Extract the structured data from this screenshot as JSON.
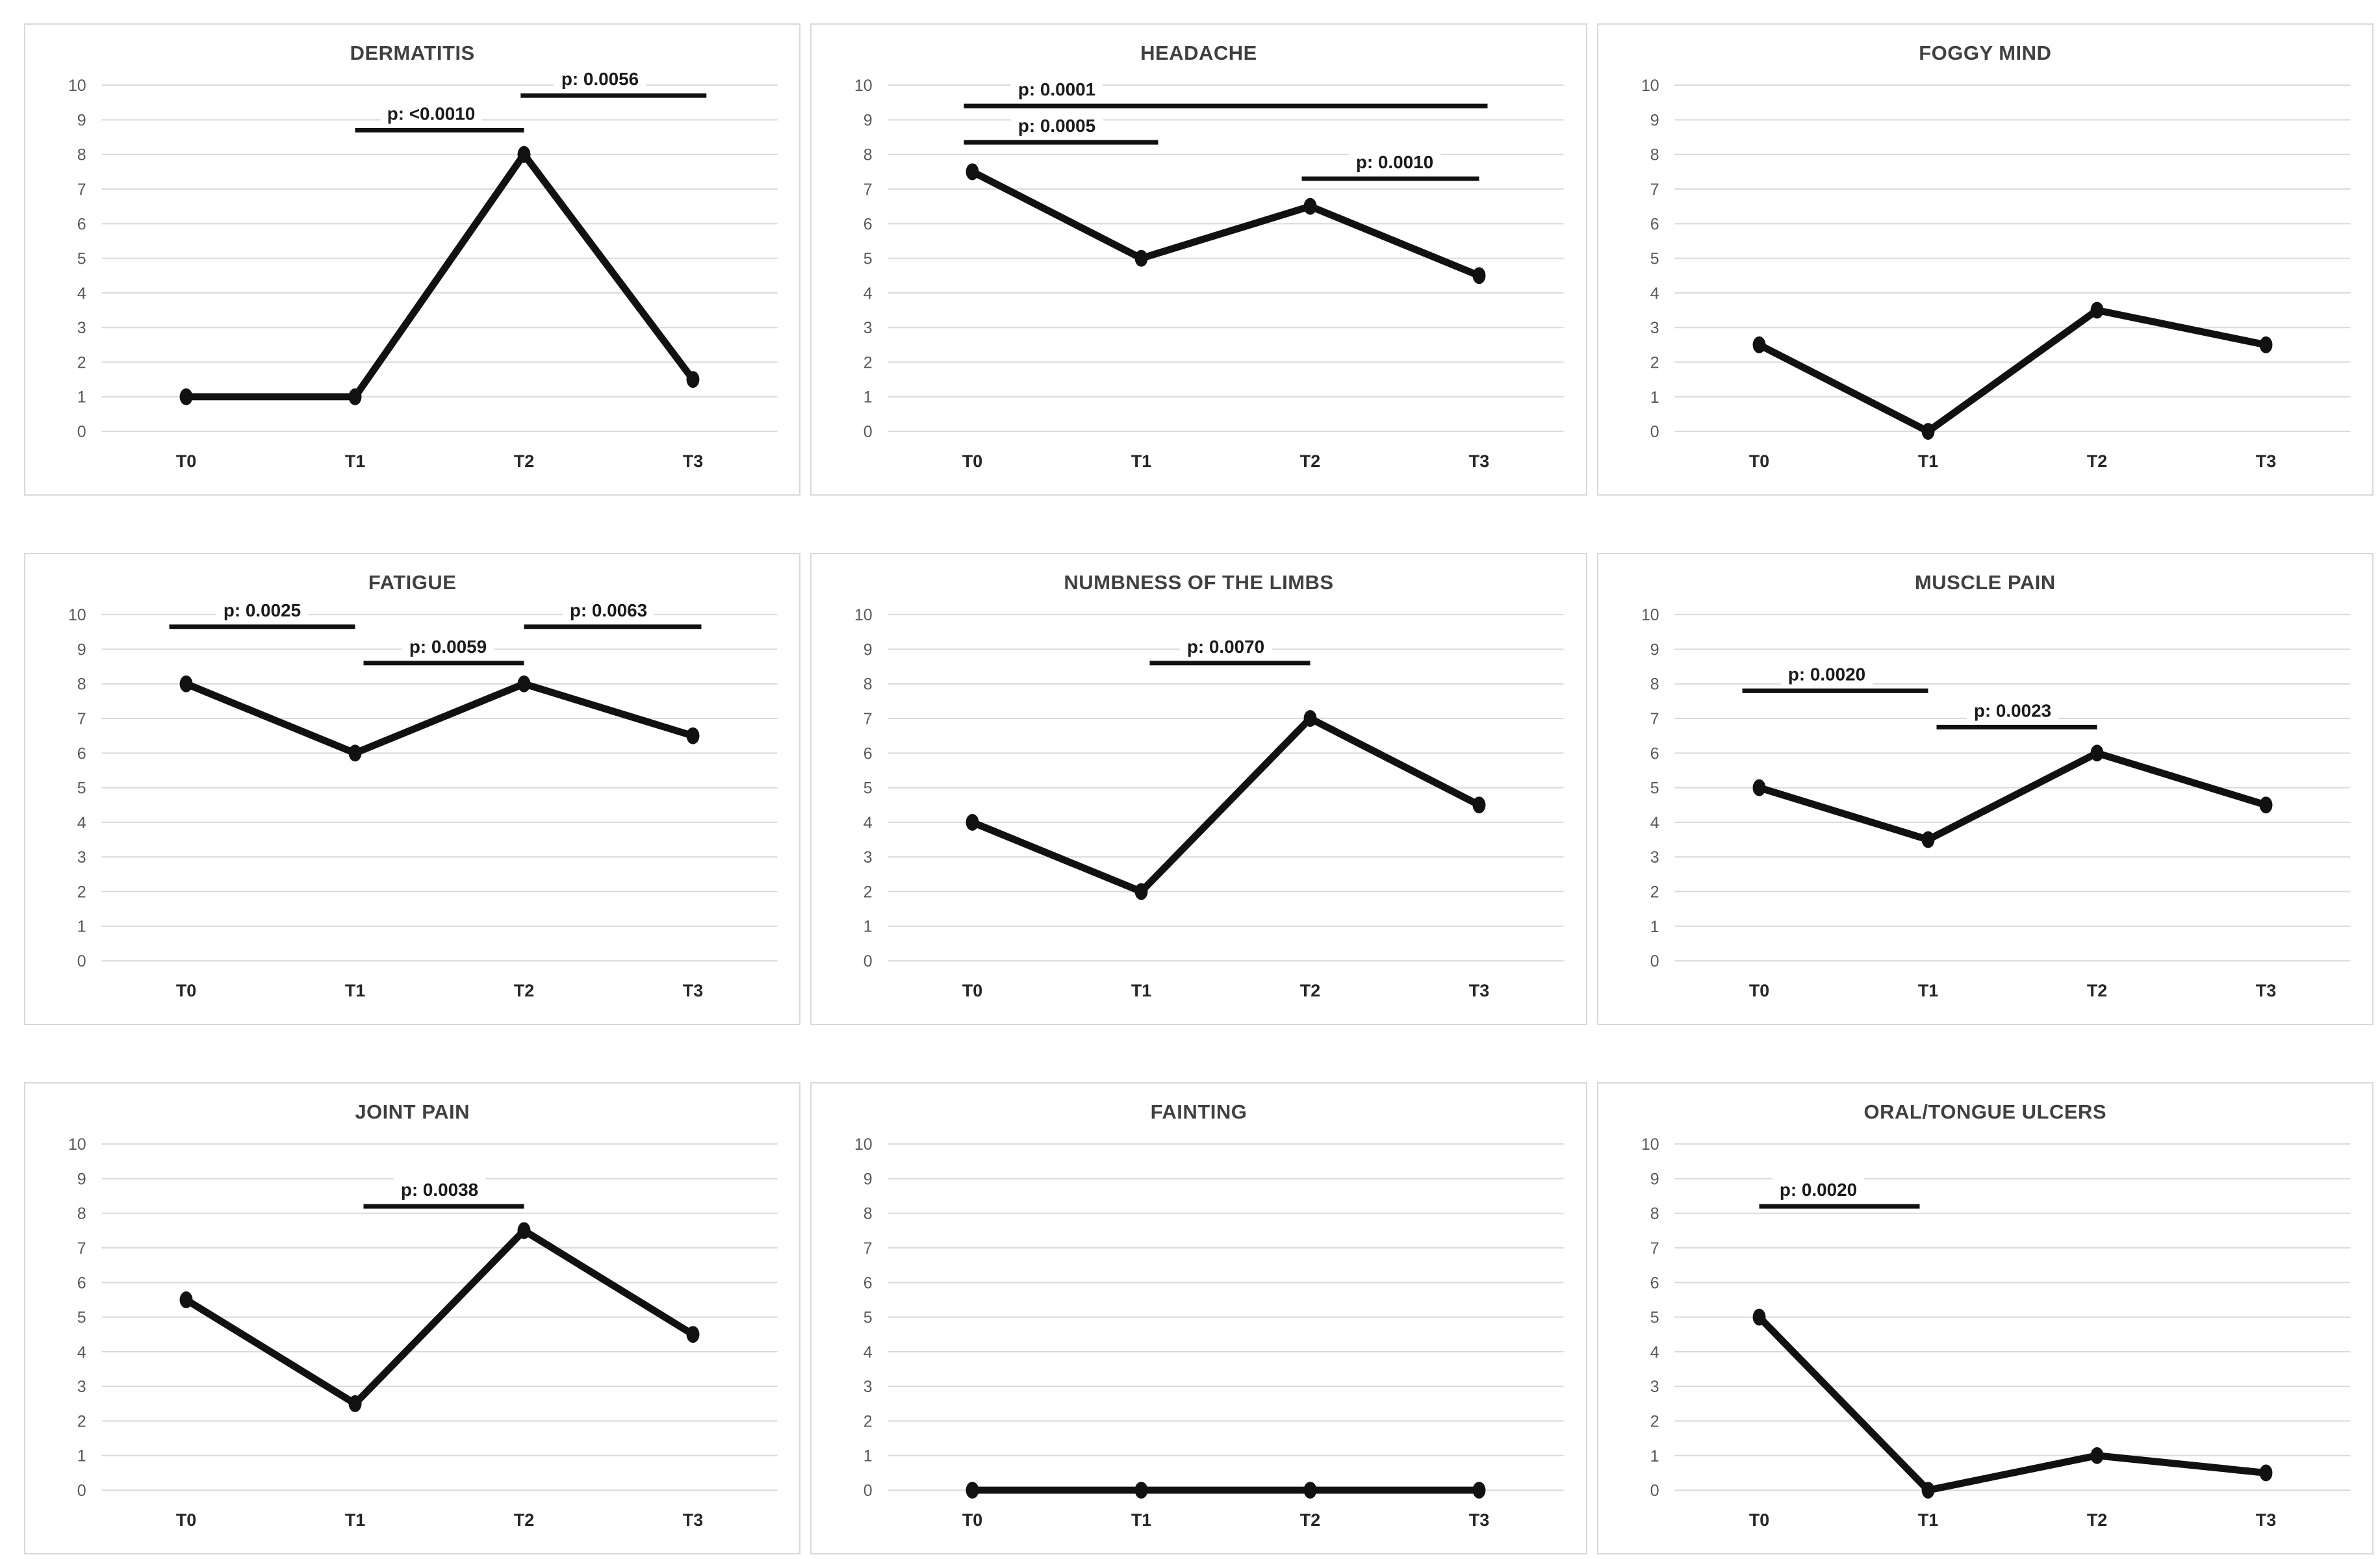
{
  "page": {
    "background": "#ffffff",
    "description": "3x3 grid of symptom severity line charts over timepoints T0-T3"
  },
  "style": {
    "line_color": "#111111",
    "grid_color": "#d9d9d9",
    "tick_color": "#595959",
    "title_color": "#404040",
    "xtick_color": "#262626",
    "panel_border": "#d9d9d9",
    "p_label_color": "#1a1a1a"
  },
  "chart_data": [
    {
      "type": "line",
      "title": "DERMATITIS",
      "categories": [
        "T0",
        "T1",
        "T2",
        "T3"
      ],
      "values": [
        1,
        1,
        8,
        1.5
      ],
      "ylim": [
        0,
        10
      ],
      "yticks": [
        0,
        1,
        2,
        3,
        4,
        5,
        6,
        7,
        8,
        9,
        10
      ],
      "grid": "horizontal",
      "legend": "none",
      "annotations": [
        {
          "label": "p: <0.0010",
          "x1": 1.0,
          "x2": 2.0,
          "y": 8.7,
          "cx": 1.45
        },
        {
          "label": "p: 0.0056",
          "x1": 1.98,
          "x2": 3.08,
          "y": 9.7,
          "cx": 2.45
        }
      ]
    },
    {
      "type": "line",
      "title": "HEADACHE",
      "categories": [
        "T0",
        "T1",
        "T2",
        "T3"
      ],
      "values": [
        7.5,
        5,
        6.5,
        4.5
      ],
      "ylim": [
        0,
        10
      ],
      "yticks": [
        0,
        1,
        2,
        3,
        4,
        5,
        6,
        7,
        8,
        9,
        10
      ],
      "grid": "horizontal",
      "legend": "none",
      "annotations": [
        {
          "label": "p: 0.0001",
          "x1": -0.05,
          "x2": 3.05,
          "y": 9.4,
          "cx": 0.5
        },
        {
          "label": "p: 0.0005",
          "x1": -0.05,
          "x2": 1.1,
          "y": 8.35,
          "cx": 0.5
        },
        {
          "label": "p: 0.0010",
          "x1": 1.95,
          "x2": 3.0,
          "y": 7.3,
          "cx": 2.5
        }
      ]
    },
    {
      "type": "line",
      "title": "FOGGY MIND",
      "categories": [
        "T0",
        "T1",
        "T2",
        "T3"
      ],
      "values": [
        2.5,
        0,
        3.5,
        2.5
      ],
      "ylim": [
        0,
        10
      ],
      "yticks": [
        0,
        1,
        2,
        3,
        4,
        5,
        6,
        7,
        8,
        9,
        10
      ],
      "grid": "horizontal",
      "legend": "none",
      "annotations": []
    },
    {
      "type": "line",
      "title": "FATIGUE",
      "categories": [
        "T0",
        "T1",
        "T2",
        "T3"
      ],
      "values": [
        8,
        6,
        8,
        6.5
      ],
      "ylim": [
        0,
        10
      ],
      "yticks": [
        0,
        1,
        2,
        3,
        4,
        5,
        6,
        7,
        8,
        9,
        10
      ],
      "grid": "horizontal",
      "legend": "none",
      "annotations": [
        {
          "label": "p: 0.0025",
          "x1": -0.1,
          "x2": 1.0,
          "y": 9.65,
          "cx": 0.45
        },
        {
          "label": "p: 0.0059",
          "x1": 1.05,
          "x2": 2.0,
          "y": 8.6,
          "cx": 1.55
        },
        {
          "label": "p: 0.0063",
          "x1": 2.0,
          "x2": 3.05,
          "y": 9.65,
          "cx": 2.5
        }
      ]
    },
    {
      "type": "line",
      "title": "NUMBNESS OF THE LIMBS",
      "categories": [
        "T0",
        "T1",
        "T2",
        "T3"
      ],
      "values": [
        4,
        2,
        7,
        4.5
      ],
      "ylim": [
        0,
        10
      ],
      "yticks": [
        0,
        1,
        2,
        3,
        4,
        5,
        6,
        7,
        8,
        9,
        10
      ],
      "grid": "horizontal",
      "legend": "none",
      "annotations": [
        {
          "label": "p: 0.0070",
          "x1": 1.05,
          "x2": 2.0,
          "y": 8.6,
          "cx": 1.5
        }
      ]
    },
    {
      "type": "line",
      "title": "MUSCLE PAIN",
      "categories": [
        "T0",
        "T1",
        "T2",
        "T3"
      ],
      "values": [
        5,
        3.5,
        6,
        4.5
      ],
      "ylim": [
        0,
        10
      ],
      "yticks": [
        0,
        1,
        2,
        3,
        4,
        5,
        6,
        7,
        8,
        9,
        10
      ],
      "grid": "horizontal",
      "legend": "none",
      "annotations": [
        {
          "label": "p: 0.0020",
          "x1": -0.1,
          "x2": 1.0,
          "y": 7.8,
          "cx": 0.4
        },
        {
          "label": "p: 0.0023",
          "x1": 1.05,
          "x2": 2.0,
          "y": 6.75,
          "cx": 1.5
        }
      ]
    },
    {
      "type": "line",
      "title": "JOINT PAIN",
      "categories": [
        "T0",
        "T1",
        "T2",
        "T3"
      ],
      "values": [
        5.5,
        2.5,
        7.5,
        4.5
      ],
      "ylim": [
        0,
        10
      ],
      "yticks": [
        0,
        1,
        2,
        3,
        4,
        5,
        6,
        7,
        8,
        9,
        10
      ],
      "grid": "horizontal",
      "legend": "none",
      "annotations": [
        {
          "label": "p: 0.0038",
          "x1": 1.05,
          "x2": 2.0,
          "y": 8.2,
          "cx": 1.5
        }
      ]
    },
    {
      "type": "line",
      "title": "FAINTING",
      "categories": [
        "T0",
        "T1",
        "T2",
        "T3"
      ],
      "values": [
        0,
        0,
        0,
        0
      ],
      "ylim": [
        0,
        10
      ],
      "yticks": [
        0,
        1,
        2,
        3,
        4,
        5,
        6,
        7,
        8,
        9,
        10
      ],
      "grid": "horizontal",
      "legend": "none",
      "annotations": []
    },
    {
      "type": "line",
      "title": "ORAL/TONGUE ULCERS",
      "categories": [
        "T0",
        "T1",
        "T2",
        "T3"
      ],
      "values": [
        5,
        0,
        1,
        0.5
      ],
      "ylim": [
        0,
        10
      ],
      "yticks": [
        0,
        1,
        2,
        3,
        4,
        5,
        6,
        7,
        8,
        9,
        10
      ],
      "grid": "horizontal",
      "legend": "none",
      "annotations": [
        {
          "label": "p: 0.0020",
          "x1": 0.0,
          "x2": 0.95,
          "y": 8.2,
          "cx": 0.35
        }
      ]
    }
  ]
}
